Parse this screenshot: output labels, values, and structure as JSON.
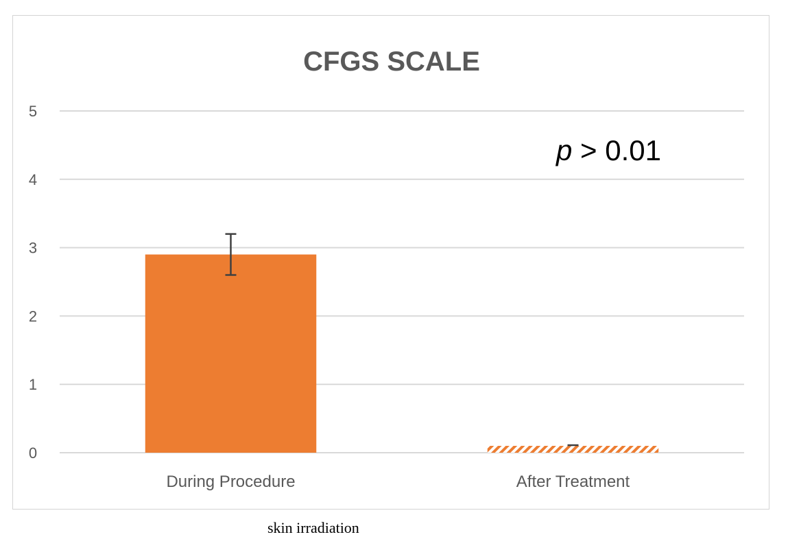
{
  "chart_data": {
    "type": "bar",
    "title": "CFGS SCALE",
    "categories": [
      "During Procedure",
      "After Treatment"
    ],
    "values": [
      2.9,
      0.1
    ],
    "error_bars": [
      {
        "low": 2.6,
        "high": 3.2
      },
      {
        "low": 0.1,
        "high": 0.1
      }
    ],
    "ylim": [
      0,
      5
    ],
    "yticks": [
      0,
      1,
      2,
      3,
      4,
      5
    ],
    "xlabel": "",
    "ylabel": "",
    "grid": true,
    "bar_colors": [
      "#ed7d31",
      "#ed7d31"
    ],
    "bar_styles": [
      "solid",
      "hatched"
    ],
    "annotation": {
      "italic_part": "p",
      "rest": " > 0.01"
    }
  },
  "caption": "skin irradiation"
}
